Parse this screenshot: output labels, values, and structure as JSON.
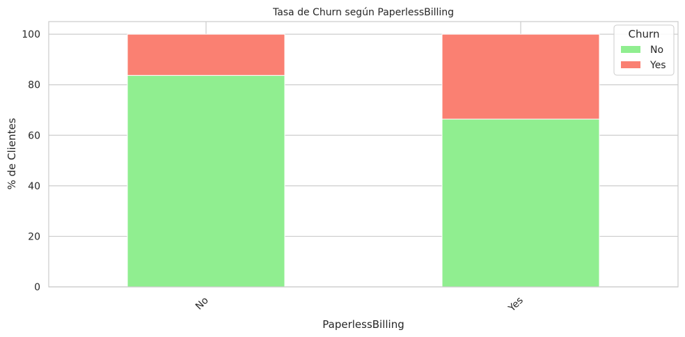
{
  "chart_data": {
    "type": "bar",
    "stacked": true,
    "title": "Tasa de Churn según PaperlessBilling",
    "xlabel": "PaperlessBilling",
    "ylabel": "% de Clientes",
    "categories": [
      "No",
      "Yes"
    ],
    "series": [
      {
        "name": "No",
        "values": [
          83.7,
          66.4
        ],
        "color": "#90ee90"
      },
      {
        "name": "Yes",
        "values": [
          16.3,
          33.6
        ],
        "color": "#fa8072"
      }
    ],
    "ylim": [
      0,
      105
    ],
    "yticks": [
      0,
      20,
      40,
      60,
      80,
      100
    ],
    "grid": true,
    "legend": {
      "title": "Churn",
      "position": "top-right"
    }
  }
}
